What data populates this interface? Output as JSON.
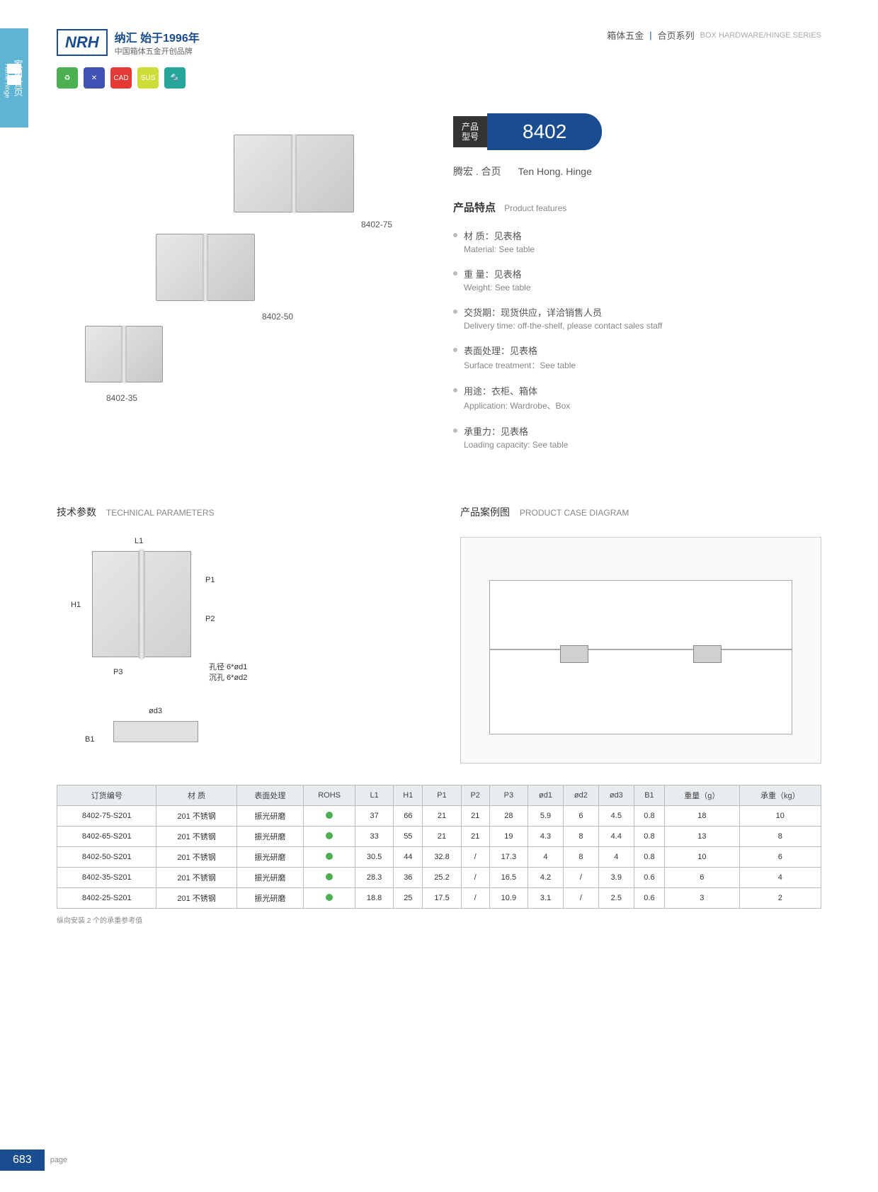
{
  "header": {
    "logo": "NRH",
    "brand_cn": "纳汇 始于1996年",
    "brand_sub": "中国箱体五金开创品牌",
    "category_cn": "箱体五金",
    "category_sub": "合页系列",
    "category_en": "BOX HARDWARE/HINGE SERIES"
  },
  "side_tab": {
    "cn": "家用合页",
    "en": "Home hinge"
  },
  "icons": [
    {
      "bg": "#4caf50",
      "text": "♻"
    },
    {
      "bg": "#3f51b5",
      "text": "✕"
    },
    {
      "bg": "#e53935",
      "text": "CAD"
    },
    {
      "bg": "#cddc39",
      "text": "SUS"
    },
    {
      "bg": "#26a69a",
      "text": "🔩"
    }
  ],
  "product_labels": [
    "8402-75",
    "8402-50",
    "8402-35"
  ],
  "model": {
    "label_cn": "产品\n型号",
    "number": "8402"
  },
  "product_name": {
    "cn": "腾宏 . 合页",
    "en": "Ten Hong. Hinge"
  },
  "features_title": {
    "cn": "产品特点",
    "en": "Product features"
  },
  "features": [
    {
      "cn": "材 质：见表格",
      "en": "Material: See table"
    },
    {
      "cn": "重 量：见表格",
      "en": "Weight: See table"
    },
    {
      "cn": "交货期：现货供应，详洽销售人员",
      "en": "Delivery time: off-the-shelf, please contact sales staff"
    },
    {
      "cn": "表面处理：见表格",
      "en": "Surface treatment：See table"
    },
    {
      "cn": "用途：衣柜、箱体",
      "en": "Application: Wardrobe、Box"
    },
    {
      "cn": "承重力：见表格",
      "en": "Loading capacity: See table"
    }
  ],
  "tech_title": {
    "cn": "技术参数",
    "en": "TECHNICAL PARAMETERS"
  },
  "case_title": {
    "cn": "产品案例图",
    "en": "PRODUCT CASE DIAGRAM"
  },
  "dims": {
    "L1": "L1",
    "H1": "H1",
    "P1": "P1",
    "P2": "P2",
    "P3": "P3",
    "d3": "ød3",
    "B1": "B1",
    "hole1": "孔径 6*ød1",
    "hole2": "沉孔 6*ød2"
  },
  "table": {
    "headers": [
      "订货编号",
      "材 质",
      "表面处理",
      "ROHS",
      "L1",
      "H1",
      "P1",
      "P2",
      "P3",
      "ød1",
      "ød2",
      "ød3",
      "B1",
      "重量（g）",
      "承重（kg）"
    ],
    "rows": [
      [
        "8402-75-S201",
        "201 不锈钢",
        "振光研磨",
        "●",
        "37",
        "66",
        "21",
        "21",
        "28",
        "5.9",
        "6",
        "4.5",
        "0.8",
        "18",
        "10"
      ],
      [
        "8402-65-S201",
        "201 不锈钢",
        "振光研磨",
        "●",
        "33",
        "55",
        "21",
        "21",
        "19",
        "4.3",
        "8",
        "4.4",
        "0.8",
        "13",
        "8"
      ],
      [
        "8402-50-S201",
        "201 不锈钢",
        "振光研磨",
        "●",
        "30.5",
        "44",
        "32.8",
        "/",
        "17.3",
        "4",
        "8",
        "4",
        "0.8",
        "10",
        "6"
      ],
      [
        "8402-35-S201",
        "201 不锈钢",
        "振光研磨",
        "●",
        "28.3",
        "36",
        "25.2",
        "/",
        "16.5",
        "4.2",
        "/",
        "3.9",
        "0.6",
        "6",
        "4"
      ],
      [
        "8402-25-S201",
        "201 不锈钢",
        "振光研磨",
        "●",
        "18.8",
        "25",
        "17.5",
        "/",
        "10.9",
        "3.1",
        "/",
        "2.5",
        "0.6",
        "3",
        "2"
      ]
    ],
    "note": "纵向安装 2 个的承重参考值"
  },
  "footer": {
    "page": "683",
    "label": "page"
  }
}
